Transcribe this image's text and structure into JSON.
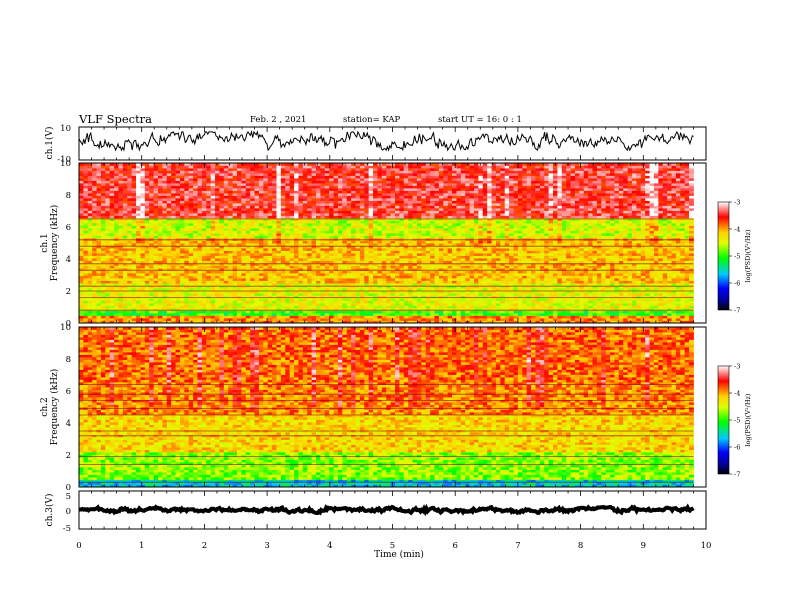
{
  "header": {
    "title": "VLF Spectra",
    "date": "Feb. 2 , 2021",
    "station": "station= KAP",
    "start": "start UT =  16: 0 : 1"
  },
  "chart_data": [
    {
      "type": "line",
      "panel": "ch1-waveform",
      "ylabel": "ch.1(V)",
      "ylim": [
        -10,
        10
      ],
      "yticklabels": [
        "10",
        "-10"
      ],
      "xlim": [
        0,
        10
      ],
      "trace_x_max": 9.8,
      "trace_level": 1.5,
      "trace_range": [
        -4,
        7
      ]
    },
    {
      "type": "heatmap",
      "panel": "ch1-spectrogram",
      "ylabel": "ch.1\nFrequency (kHz)",
      "ylim": [
        0,
        10
      ],
      "yticks": [
        0,
        2,
        4,
        6,
        8,
        10
      ],
      "xlim": [
        0,
        10
      ],
      "data_x_max": 9.8,
      "colorbar": {
        "label": "log(PSD)(V²/Hz)",
        "range": [
          -7,
          -3
        ],
        "ticks": [
          -3,
          -4,
          -5,
          -6,
          -7
        ]
      },
      "bands": [
        {
          "f": [
            6.5,
            10
          ],
          "level": -3.5
        },
        {
          "f": [
            5.3,
            6.5
          ],
          "level": -4.6
        },
        {
          "f": [
            2.5,
            5.3
          ],
          "level": -4.2
        },
        {
          "f": [
            0.8,
            2.5
          ],
          "level": -4.5
        },
        {
          "f": [
            0.4,
            0.8
          ],
          "level": -5.0
        },
        {
          "f": [
            0,
            0.4
          ],
          "level": -4.0
        }
      ],
      "lines_khz": [
        6.5,
        5.2,
        4.8,
        3.7,
        3.3,
        2.3,
        2.0,
        1.6,
        0.8
      ]
    },
    {
      "type": "heatmap",
      "panel": "ch2-spectrogram",
      "ylabel": "ch.2\nFrequency (kHz)",
      "ylim": [
        0,
        10
      ],
      "yticks": [
        0,
        2,
        4,
        6,
        8,
        10
      ],
      "xlim": [
        0,
        10
      ],
      "data_x_max": 9.8,
      "colorbar": {
        "label": "log(PSD)(V²/Hz)",
        "range": [
          -7,
          -3
        ],
        "ticks": [
          -3,
          -4,
          -5,
          -6,
          -7
        ]
      },
      "bands": [
        {
          "f": [
            6.6,
            10
          ],
          "level": -3.9
        },
        {
          "f": [
            4.5,
            6.6
          ],
          "level": -4.0
        },
        {
          "f": [
            2.2,
            4.5
          ],
          "level": -4.3
        },
        {
          "f": [
            0.5,
            2.2
          ],
          "level": -4.8
        },
        {
          "f": [
            0,
            0.5
          ],
          "level": -5.6
        }
      ],
      "lines_khz": [
        6.4,
        5.8,
        5.4,
        4.9,
        4.5,
        3.5,
        3.2,
        1.9,
        1.4,
        0.3
      ]
    },
    {
      "type": "line",
      "panel": "ch3-waveform",
      "ylabel": "ch.3(V)",
      "ylim": [
        -5,
        5
      ],
      "yticklabels": [
        "5",
        "0",
        "-5"
      ],
      "xlim": [
        0,
        10
      ],
      "trace_x_max": 9.8,
      "trace_level": 0,
      "trace_range": [
        -0.8,
        0.8
      ]
    }
  ],
  "xaxis": {
    "label": "Time (min)",
    "ticks": [
      "0",
      "1",
      "2",
      "3",
      "4",
      "5",
      "6",
      "7",
      "8",
      "9",
      "10"
    ]
  }
}
